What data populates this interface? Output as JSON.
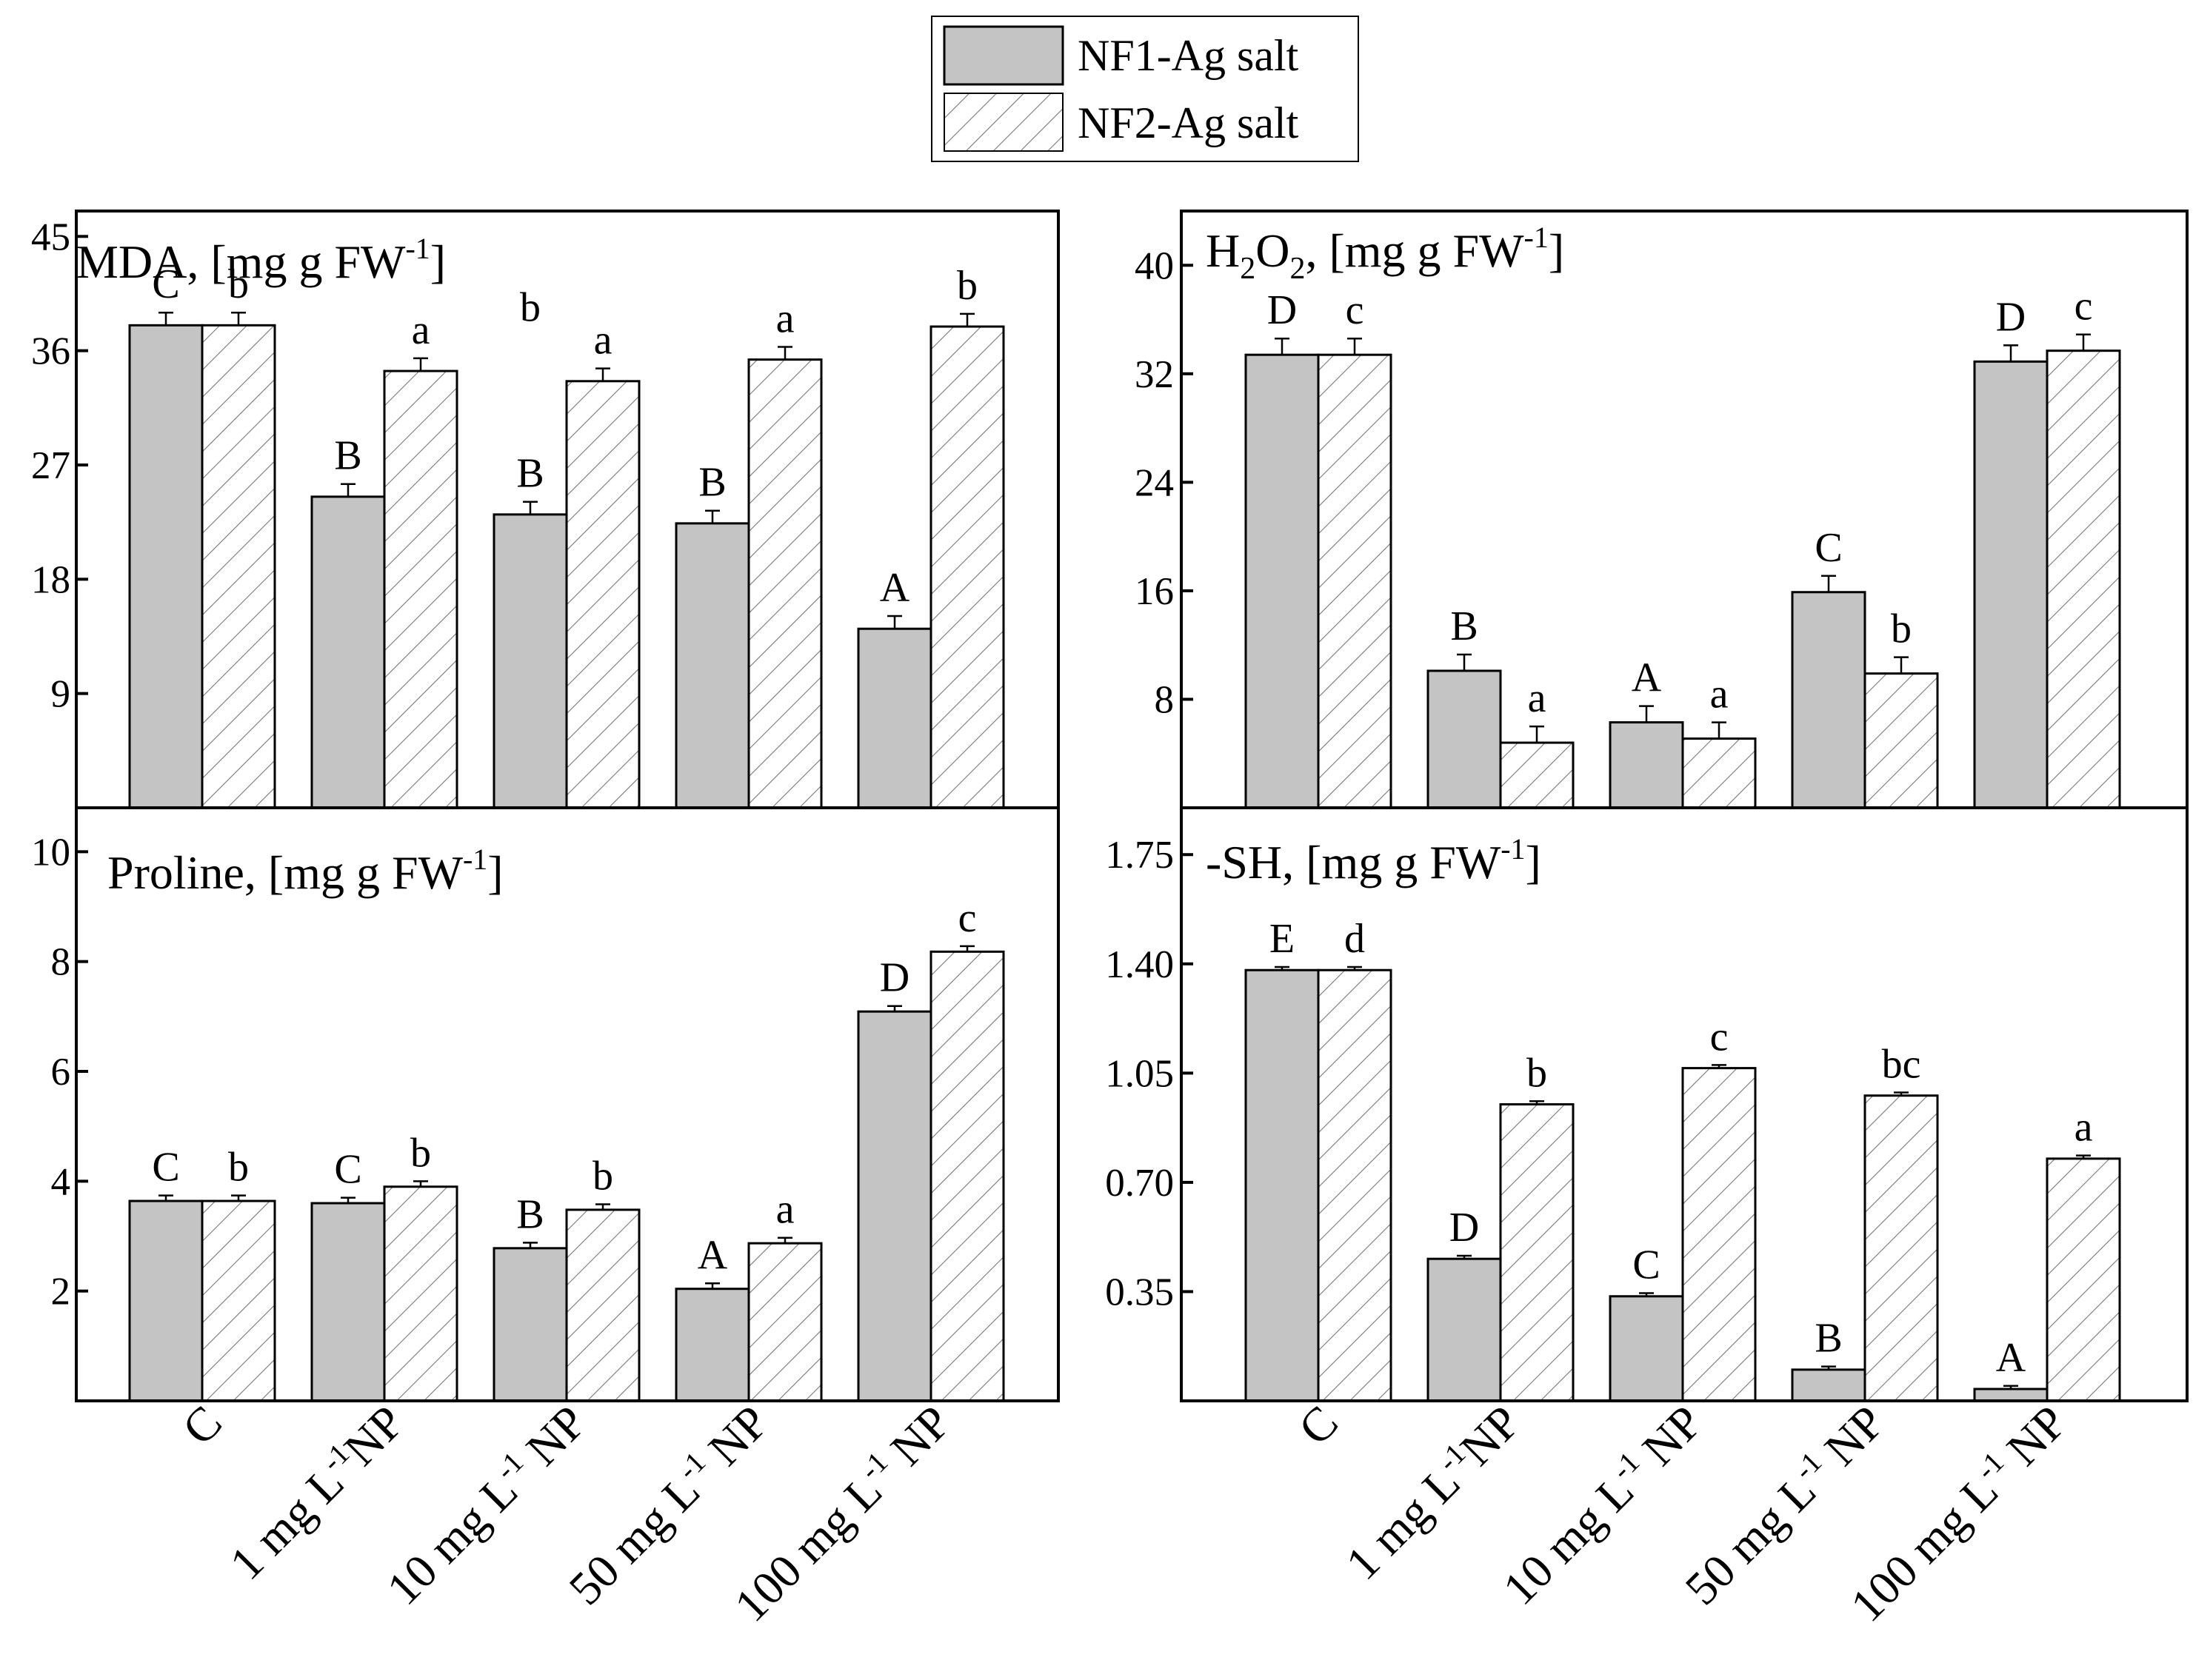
{
  "colors": {
    "nf1_fill": "#c4c4c4",
    "nf2_fill": "#ffffff",
    "hatch": "#666666",
    "axis": "#000000"
  },
  "legend": {
    "items": [
      {
        "key": "nf1",
        "label": "NF1-Ag salt"
      },
      {
        "key": "nf2",
        "label": "NF2-Ag salt"
      }
    ]
  },
  "chart_data": [
    {
      "type": "bar",
      "id": "mda",
      "position": "top-left",
      "title": "MDA, [mg g FW",
      "title_sup": "-1",
      "title_end": "]",
      "categories": [
        "C",
        "1 mg L-1NP",
        "10 mg L-1 NP",
        "50 mg L-1 NP",
        "100 mg L-1 NP"
      ],
      "series": [
        {
          "name": "NF1-Ag salt",
          "values": [
            38.0,
            24.5,
            23.1,
            22.4,
            14.1
          ],
          "errors": [
            1.0,
            1.0,
            1.0,
            1.0,
            1.0
          ],
          "labels": [
            "C",
            "B",
            "B",
            "B",
            "A"
          ]
        },
        {
          "name": "NF2-Ag salt",
          "values": [
            38.0,
            34.4,
            33.6,
            35.3,
            37.9
          ],
          "errors": [
            1.0,
            1.0,
            1.0,
            1.0,
            1.0
          ],
          "labels": [
            "b",
            "a",
            "a",
            "a",
            "b"
          ]
        }
      ],
      "extra_labels": [
        {
          "text": "b",
          "category_index": 2,
          "series_index": 0,
          "y": 38
        }
      ],
      "ylim": [
        0,
        47
      ],
      "yticks": [
        9,
        18,
        27,
        36,
        45
      ]
    },
    {
      "type": "bar",
      "id": "h2o2",
      "position": "top-right",
      "title_parts": [
        "H",
        "2",
        "O",
        "2",
        ", [mg g FW",
        "-1",
        "]"
      ],
      "categories": [
        "C",
        "1 mg L-1NP",
        "10 mg L-1 NP",
        "50 mg L-1 NP",
        "100 mg L-1 NP"
      ],
      "series": [
        {
          "name": "NF1-Ag salt",
          "values": [
            33.4,
            10.1,
            6.3,
            15.9,
            32.9
          ],
          "errors": [
            1.2,
            1.2,
            1.2,
            1.2,
            1.2
          ],
          "labels": [
            "D",
            "B",
            "A",
            "C",
            "D"
          ]
        },
        {
          "name": "NF2-Ag salt",
          "values": [
            33.4,
            4.8,
            5.1,
            9.9,
            33.7
          ],
          "errors": [
            1.2,
            1.2,
            1.2,
            1.2,
            1.2
          ],
          "labels": [
            "c",
            "a",
            "a",
            "b",
            "c"
          ]
        }
      ],
      "ylim": [
        0,
        44
      ],
      "yticks": [
        8,
        16,
        24,
        32,
        40
      ]
    },
    {
      "type": "bar",
      "id": "proline",
      "position": "bottom-left",
      "title": "Proline, [mg g FW",
      "title_sup": "-1",
      "title_end": "]",
      "categories": [
        "C",
        "1 mg L-1NP",
        "10 mg L-1 NP",
        "50 mg L-1 NP",
        "100 mg L-1 NP"
      ],
      "series": [
        {
          "name": "NF1-Ag salt",
          "values": [
            3.64,
            3.6,
            2.78,
            2.04,
            7.09
          ],
          "errors": [
            0.1,
            0.1,
            0.1,
            0.1,
            0.1
          ],
          "labels": [
            "C",
            "C",
            "B",
            "A",
            "D"
          ]
        },
        {
          "name": "NF2-Ag salt",
          "values": [
            3.64,
            3.9,
            3.48,
            2.87,
            8.18
          ],
          "errors": [
            0.1,
            0.1,
            0.1,
            0.1,
            0.1
          ],
          "labels": [
            "b",
            "b",
            "b",
            "a",
            "c"
          ]
        }
      ],
      "ylim": [
        0,
        10.8
      ],
      "yticks": [
        2,
        4,
        6,
        8,
        10
      ]
    },
    {
      "type": "bar",
      "id": "sh",
      "position": "bottom-right",
      "title": "-SH, [mg g FW",
      "title_sup": "-1",
      "title_end": "]",
      "categories": [
        "C",
        "1 mg L-1NP",
        "10 mg L-1 NP",
        "50 mg L-1 NP",
        "100 mg L-1 NP"
      ],
      "series": [
        {
          "name": "NF1-Ag salt",
          "values": [
            1.38,
            0.455,
            0.335,
            0.1,
            0.038
          ],
          "errors": [
            0.01,
            0.01,
            0.01,
            0.01,
            0.01
          ],
          "labels": [
            "E",
            "D",
            "C",
            "B",
            "A"
          ]
        },
        {
          "name": "NF2-Ag salt",
          "values": [
            1.38,
            0.95,
            1.066,
            0.978,
            0.776
          ],
          "errors": [
            0.01,
            0.01,
            0.01,
            0.01,
            0.01
          ],
          "labels": [
            "d",
            "b",
            "c",
            "bc",
            "a"
          ]
        }
      ],
      "ylim": [
        0,
        1.9
      ],
      "yticks": [
        0.35,
        0.7,
        1.05,
        1.4,
        1.75
      ],
      "ytick_labels": [
        "0.35",
        "0.70",
        "1.05",
        "1.40",
        "1.75"
      ]
    }
  ],
  "x_axis": {
    "category_labels": [
      {
        "main": "C",
        "sup": ""
      },
      {
        "main": "1 mg L",
        "sup": "-1",
        "tail": "NP"
      },
      {
        "main": "10 mg L",
        "sup": "-1",
        "tail": " NP"
      },
      {
        "main": "50 mg L",
        "sup": "-1",
        "tail": " NP"
      },
      {
        "main": "100 mg L",
        "sup": "-1",
        "tail": " NP"
      }
    ]
  }
}
